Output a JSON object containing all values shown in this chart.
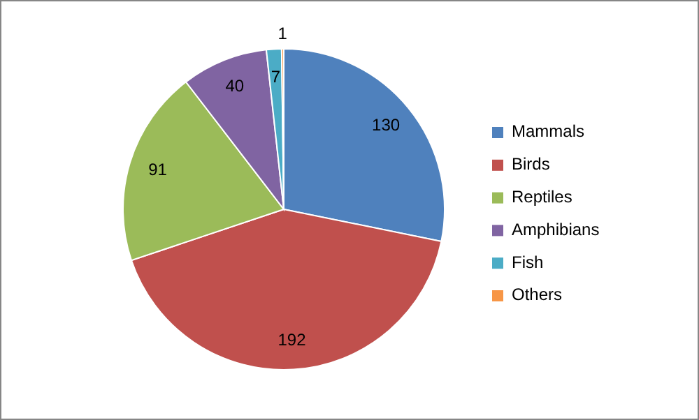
{
  "chart_data": {
    "type": "pie",
    "categories": [
      "Mammals",
      "Birds",
      "Reptiles",
      "Amphibians",
      "Fish",
      "Others"
    ],
    "values": [
      130,
      192,
      91,
      40,
      7,
      1
    ],
    "colors": [
      "#4f81bd",
      "#c0504d",
      "#9bbb59",
      "#8064a2",
      "#4bacc6",
      "#f79646"
    ],
    "data_labels": true,
    "legend": "right"
  }
}
